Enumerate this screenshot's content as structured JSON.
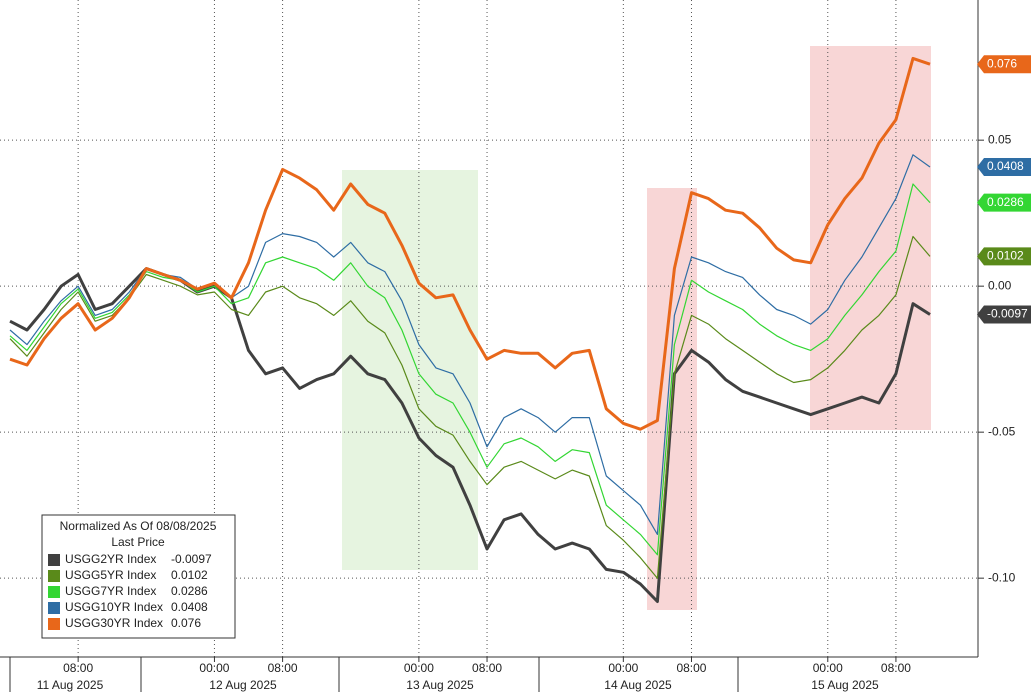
{
  "chart_data": {
    "type": "line",
    "x": [
      "2025-08-11 00:00",
      "2025-08-11 02:00",
      "2025-08-11 04:00",
      "2025-08-11 06:00",
      "2025-08-11 08:00",
      "2025-08-11 10:00",
      "2025-08-11 12:00",
      "2025-08-11 14:00",
      "2025-08-11 16:00",
      "2025-08-11 18:00",
      "2025-08-11 20:00",
      "2025-08-11 22:00",
      "2025-08-12 00:00",
      "2025-08-12 02:00",
      "2025-08-12 04:00",
      "2025-08-12 06:00",
      "2025-08-12 08:00",
      "2025-08-12 10:00",
      "2025-08-12 12:00",
      "2025-08-12 14:00",
      "2025-08-12 16:00",
      "2025-08-12 18:00",
      "2025-08-12 20:00",
      "2025-08-12 22:00",
      "2025-08-13 00:00",
      "2025-08-13 02:00",
      "2025-08-13 04:00",
      "2025-08-13 06:00",
      "2025-08-13 08:00",
      "2025-08-13 10:00",
      "2025-08-13 12:00",
      "2025-08-13 14:00",
      "2025-08-13 16:00",
      "2025-08-13 18:00",
      "2025-08-13 20:00",
      "2025-08-13 22:00",
      "2025-08-14 00:00",
      "2025-08-14 02:00",
      "2025-08-14 04:00",
      "2025-08-14 06:00",
      "2025-08-14 08:00",
      "2025-08-14 10:00",
      "2025-08-14 12:00",
      "2025-08-14 14:00",
      "2025-08-14 16:00",
      "2025-08-14 18:00",
      "2025-08-14 20:00",
      "2025-08-14 22:00",
      "2025-08-15 00:00",
      "2025-08-15 02:00",
      "2025-08-15 04:00",
      "2025-08-15 06:00",
      "2025-08-15 08:00",
      "2025-08-15 10:00",
      "2025-08-15 12:00"
    ],
    "series": [
      {
        "name": "USGG2YR Index",
        "color": "#404040",
        "width": 3,
        "values": [
          -0.012,
          -0.015,
          -0.008,
          0.0,
          0.004,
          -0.008,
          -0.006,
          0.0,
          0.006,
          0.004,
          0.002,
          -0.002,
          0.0,
          -0.004,
          -0.022,
          -0.03,
          -0.028,
          -0.035,
          -0.032,
          -0.03,
          -0.024,
          -0.03,
          -0.032,
          -0.04,
          -0.052,
          -0.058,
          -0.062,
          -0.075,
          -0.09,
          -0.08,
          -0.078,
          -0.085,
          -0.09,
          -0.088,
          -0.09,
          -0.097,
          -0.098,
          -0.102,
          -0.108,
          -0.03,
          -0.022,
          -0.026,
          -0.032,
          -0.036,
          -0.038,
          -0.04,
          -0.042,
          -0.044,
          -0.042,
          -0.04,
          -0.038,
          -0.04,
          -0.03,
          -0.006,
          -0.0097
        ]
      },
      {
        "name": "USGG5YR Index",
        "color": "#5a8a1a",
        "width": 1.2,
        "values": [
          -0.018,
          -0.024,
          -0.016,
          -0.008,
          -0.002,
          -0.012,
          -0.01,
          -0.004,
          0.004,
          0.002,
          0.0,
          -0.003,
          -0.002,
          -0.008,
          -0.01,
          -0.002,
          0.0,
          -0.004,
          -0.006,
          -0.01,
          -0.005,
          -0.012,
          -0.016,
          -0.027,
          -0.042,
          -0.048,
          -0.051,
          -0.06,
          -0.068,
          -0.062,
          -0.06,
          -0.063,
          -0.066,
          -0.063,
          -0.065,
          -0.082,
          -0.087,
          -0.093,
          -0.1,
          -0.03,
          -0.01,
          -0.013,
          -0.018,
          -0.022,
          -0.026,
          -0.03,
          -0.033,
          -0.032,
          -0.028,
          -0.022,
          -0.015,
          -0.01,
          -0.003,
          0.017,
          0.0102
        ]
      },
      {
        "name": "USGG7YR Index",
        "color": "#33d633",
        "width": 1.2,
        "values": [
          -0.017,
          -0.022,
          -0.014,
          -0.006,
          -0.001,
          -0.011,
          -0.009,
          -0.003,
          0.005,
          0.003,
          0.002,
          -0.002,
          0.0,
          -0.006,
          -0.004,
          0.008,
          0.01,
          0.008,
          0.006,
          0.002,
          0.008,
          0.0,
          -0.004,
          -0.015,
          -0.03,
          -0.037,
          -0.04,
          -0.05,
          -0.062,
          -0.054,
          -0.052,
          -0.055,
          -0.06,
          -0.056,
          -0.057,
          -0.075,
          -0.08,
          -0.085,
          -0.092,
          -0.02,
          0.002,
          -0.002,
          -0.005,
          -0.008,
          -0.013,
          -0.017,
          -0.02,
          -0.022,
          -0.018,
          -0.01,
          -0.003,
          0.005,
          0.012,
          0.035,
          0.0286
        ]
      },
      {
        "name": "USGG10YR Index",
        "color": "#2e6da4",
        "width": 1.2,
        "values": [
          -0.015,
          -0.02,
          -0.012,
          -0.005,
          0.0,
          -0.01,
          -0.008,
          -0.002,
          0.006,
          0.004,
          0.003,
          -0.001,
          0.001,
          -0.004,
          0.0,
          0.015,
          0.018,
          0.017,
          0.015,
          0.01,
          0.015,
          0.008,
          0.005,
          -0.005,
          -0.02,
          -0.028,
          -0.03,
          -0.04,
          -0.055,
          -0.045,
          -0.042,
          -0.045,
          -0.05,
          -0.045,
          -0.045,
          -0.065,
          -0.07,
          -0.075,
          -0.085,
          -0.01,
          0.01,
          0.008,
          0.005,
          0.003,
          -0.003,
          -0.008,
          -0.01,
          -0.013,
          -0.008,
          0.002,
          0.01,
          0.02,
          0.03,
          0.045,
          0.0408
        ]
      },
      {
        "name": "USGG30YR Index",
        "color": "#e8671a",
        "width": 3,
        "values": [
          -0.025,
          -0.027,
          -0.018,
          -0.011,
          -0.006,
          -0.015,
          -0.011,
          -0.004,
          0.006,
          0.004,
          0.002,
          -0.001,
          0.001,
          -0.004,
          0.008,
          0.026,
          0.04,
          0.037,
          0.033,
          0.026,
          0.035,
          0.028,
          0.025,
          0.014,
          0.001,
          -0.004,
          -0.003,
          -0.015,
          -0.025,
          -0.022,
          -0.023,
          -0.023,
          -0.028,
          -0.023,
          -0.022,
          -0.042,
          -0.047,
          -0.049,
          -0.046,
          0.006,
          0.032,
          0.03,
          0.026,
          0.025,
          0.02,
          0.013,
          0.009,
          0.008,
          0.021,
          0.03,
          0.037,
          0.049,
          0.057,
          0.078,
          0.076
        ]
      }
    ],
    "ylim": [
      -0.127,
      0.098
    ],
    "yticks": [
      0.05,
      {
        "value": 0,
        "label": "0.00"
      },
      -0.05,
      {
        "value": -0.1,
        "label": "-0.10"
      }
    ],
    "xticks": [
      {
        "value": "2025-08-11 08:00",
        "label": "08:00"
      },
      {
        "value": "2025-08-12 00:00",
        "label": "00:00"
      },
      {
        "value": "2025-08-12 08:00",
        "label": "08:00"
      },
      {
        "value": "2025-08-13 00:00",
        "label": "00:00"
      },
      {
        "value": "2025-08-13 08:00",
        "label": "08:00"
      },
      {
        "value": "2025-08-14 00:00",
        "label": "00:00"
      },
      {
        "value": "2025-08-14 08:00",
        "label": "08:00"
      },
      {
        "value": "2025-08-15 00:00",
        "label": "00:00"
      },
      {
        "value": "2025-08-15 08:00",
        "label": "08:00"
      }
    ],
    "days": [
      "11 Aug 2025",
      "12 Aug 2025",
      "13 Aug 2025",
      "14 Aug 2025",
      "15 Aug 2025"
    ],
    "legend_title": "Normalized As Of 08/08/2025",
    "legend_subtitle": "Last Price",
    "grid": true
  }
}
